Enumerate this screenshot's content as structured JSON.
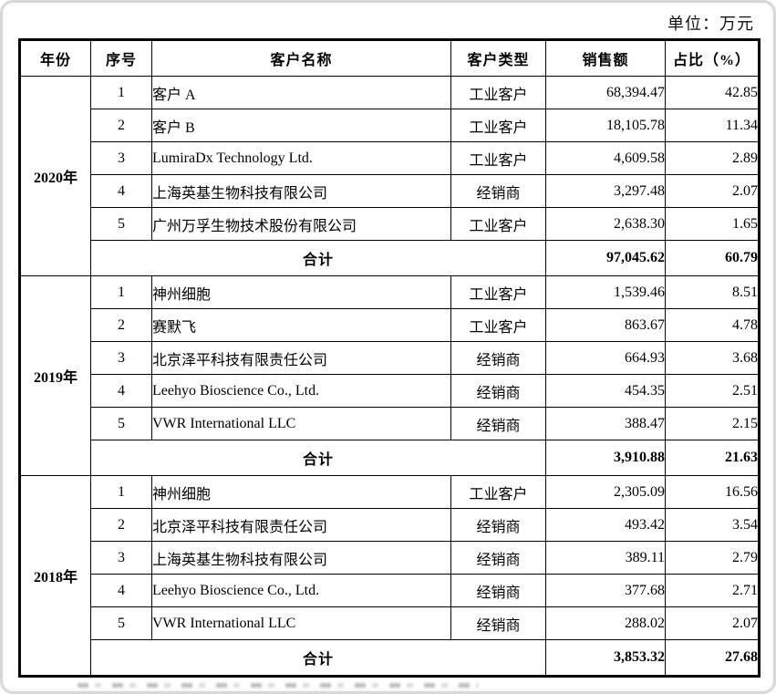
{
  "unit_label": "单位：万元",
  "table": {
    "headers": [
      "年份",
      "序号",
      "客户名称",
      "客户类型",
      "销售额",
      "占比（%）"
    ],
    "total_label": "合计",
    "sections": [
      {
        "year": "2020年",
        "rows": [
          {
            "no": "1",
            "name": "客户 A",
            "type": "工业客户",
            "sales": "68,394.47",
            "share": "42.85"
          },
          {
            "no": "2",
            "name": "客户 B",
            "type": "工业客户",
            "sales": "18,105.78",
            "share": "11.34"
          },
          {
            "no": "3",
            "name": "LumiraDx Technology Ltd.",
            "type": "工业客户",
            "sales": "4,609.58",
            "share": "2.89"
          },
          {
            "no": "4",
            "name": "上海英基生物科技有限公司",
            "type": "经销商",
            "sales": "3,297.48",
            "share": "2.07"
          },
          {
            "no": "5",
            "name": "广州万孚生物技术股份有限公司",
            "type": "工业客户",
            "sales": "2,638.30",
            "share": "1.65"
          }
        ],
        "total": {
          "sales": "97,045.62",
          "share": "60.79"
        }
      },
      {
        "year": "2019年",
        "rows": [
          {
            "no": "1",
            "name": "神州细胞",
            "type": "工业客户",
            "sales": "1,539.46",
            "share": "8.51"
          },
          {
            "no": "2",
            "name": "赛默飞",
            "type": "工业客户",
            "sales": "863.67",
            "share": "4.78"
          },
          {
            "no": "3",
            "name": "北京泽平科技有限责任公司",
            "type": "经销商",
            "sales": "664.93",
            "share": "3.68"
          },
          {
            "no": "4",
            "name": "Leehyo Bioscience Co., Ltd.",
            "type": "经销商",
            "sales": "454.35",
            "share": "2.51"
          },
          {
            "no": "5",
            "name": "VWR International LLC",
            "type": "经销商",
            "sales": "388.47",
            "share": "2.15"
          }
        ],
        "total": {
          "sales": "3,910.88",
          "share": "21.63"
        }
      },
      {
        "year": "2018年",
        "rows": [
          {
            "no": "1",
            "name": "神州细胞",
            "type": "工业客户",
            "sales": "2,305.09",
            "share": "16.56"
          },
          {
            "no": "2",
            "name": "北京泽平科技有限责任公司",
            "type": "经销商",
            "sales": "493.42",
            "share": "3.54"
          },
          {
            "no": "3",
            "name": "上海英基生物科技有限公司",
            "type": "经销商",
            "sales": "389.11",
            "share": "2.79"
          },
          {
            "no": "4",
            "name": "Leehyo Bioscience Co., Ltd.",
            "type": "经销商",
            "sales": "377.68",
            "share": "2.71"
          },
          {
            "no": "5",
            "name": "VWR International LLC",
            "type": "经销商",
            "sales": "288.02",
            "share": "2.07"
          }
        ],
        "total": {
          "sales": "3,853.32",
          "share": "27.68"
        }
      }
    ]
  }
}
